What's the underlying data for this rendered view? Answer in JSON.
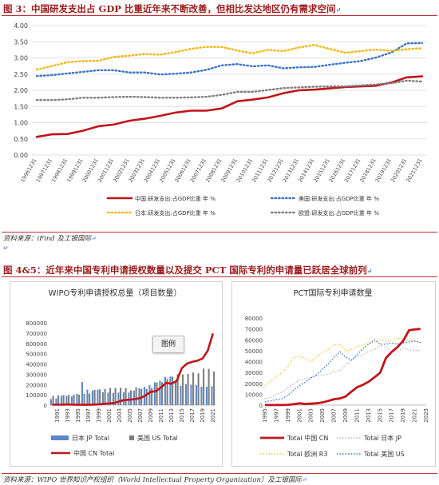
{
  "header1": {
    "title": "图 3：中国研发支出占 GDP 比重近年来不断改善，但相比发达地区仍有需求空间",
    "return_mark": "↵"
  },
  "source1": {
    "text": "资料来源：iFind 及工银国际",
    "return_mark": "↵"
  },
  "blank_mark": "↵",
  "header2": {
    "title": "图 4&5：近年来中国专利申请授权数量以及提交 PCT 国际专利的申请量已跃居全球前列",
    "return_mark": "↵"
  },
  "source2": {
    "text": "资料来源：WIPO 世界知识产权组织（World Intellectual Property Organization）及工银国际",
    "return_mark": "↵"
  },
  "tooltip_label": "图例",
  "colors": {
    "china": "#c0151a",
    "us": "#3a73c6",
    "japan": "#f2b81a",
    "eu": "#7f7f7f",
    "jp_bar": "#5b88c8",
    "us_bar": "#7d7d7d",
    "r3": "#f2c844",
    "pct_jp": "#b8b8b8"
  },
  "chart_data": [
    {
      "type": "line",
      "y_ticks": [
        "0.00",
        "0.50",
        "1.00",
        "1.50",
        "2.00",
        "2.50",
        "3.00",
        "3.50",
        "4.00"
      ],
      "ylim": [
        0,
        4.0
      ],
      "x": [
        "19961231",
        "19971231",
        "19981231",
        "19991231",
        "20001231",
        "20011231",
        "20021231",
        "20031231",
        "20041231",
        "20051231",
        "20061231",
        "20071231",
        "20081231",
        "20091231",
        "20101231",
        "20111231",
        "20121231",
        "20131231",
        "20141231",
        "20151231",
        "20161231",
        "20171231",
        "20181231",
        "20191231",
        "20201231",
        "20211231"
      ],
      "x_tick_labels": [
        "19961231",
        "19971231",
        "19981231",
        "19991231",
        "20001231",
        "20011231",
        "20021231",
        "20031231",
        "20041231",
        "20051231",
        "20061231",
        "20071231",
        "20081231",
        "20091231",
        "20101231",
        "20111231",
        "20121231",
        "20131231",
        "20141231",
        "20151231",
        "20161231",
        "20171231",
        "20181231",
        "20191231",
        "20201231",
        "20211231"
      ],
      "series": [
        {
          "name": "中国:研发支出:占GDP比重 年 %",
          "style": "solid",
          "values": [
            0.56,
            0.64,
            0.65,
            0.75,
            0.89,
            0.94,
            1.06,
            1.12,
            1.21,
            1.31,
            1.37,
            1.37,
            1.44,
            1.66,
            1.71,
            1.78,
            1.91,
            2.0,
            2.02,
            2.06,
            2.1,
            2.12,
            2.14,
            2.24,
            2.4,
            2.43
          ]
        },
        {
          "name": "美国:研发支出:占GDP比重 年 %",
          "style": "dotted",
          "values": [
            2.44,
            2.47,
            2.52,
            2.57,
            2.62,
            2.62,
            2.55,
            2.55,
            2.49,
            2.51,
            2.55,
            2.63,
            2.77,
            2.81,
            2.74,
            2.77,
            2.68,
            2.71,
            2.72,
            2.79,
            2.85,
            2.9,
            3.01,
            3.17,
            3.45,
            3.46
          ]
        },
        {
          "name": "日本:研发支出:占GDP比重 年 %",
          "style": "dotted",
          "values": [
            2.64,
            2.75,
            2.87,
            2.9,
            2.91,
            3.03,
            3.07,
            3.12,
            3.1,
            3.18,
            3.28,
            3.34,
            3.34,
            3.23,
            3.14,
            3.25,
            3.21,
            3.32,
            3.4,
            3.28,
            3.16,
            3.21,
            3.26,
            3.22,
            3.27,
            3.3
          ]
        },
        {
          "name": "欧盟:研发支出:占GDP比重 年 %",
          "style": "dotted",
          "values": [
            1.7,
            1.7,
            1.72,
            1.77,
            1.77,
            1.79,
            1.8,
            1.79,
            1.77,
            1.77,
            1.78,
            1.8,
            1.86,
            1.95,
            1.95,
            2.01,
            2.07,
            2.09,
            2.11,
            2.12,
            2.12,
            2.15,
            2.18,
            2.22,
            2.3,
            2.27
          ]
        }
      ]
    },
    {
      "type": "bar",
      "title": "WIPO专利申请授权总量（项目数量）",
      "y_ticks": [
        "0",
        "100000",
        "200000",
        "300000",
        "400000",
        "500000",
        "600000",
        "700000",
        "800000"
      ],
      "ylim": [
        0,
        800000
      ],
      "x_tick_labels": [
        "1991",
        "1993",
        "1995",
        "1997",
        "1999",
        "2001",
        "2003",
        "2005",
        "2007",
        "2009",
        "2011",
        "2013",
        "2015",
        "2017",
        "2019",
        "2021"
      ],
      "categories": [
        1990,
        1991,
        1992,
        1993,
        1994,
        1995,
        1996,
        1997,
        1998,
        1999,
        2000,
        2001,
        2002,
        2003,
        2004,
        2005,
        2006,
        2007,
        2008,
        2009,
        2010,
        2011,
        2012,
        2013,
        2014,
        2015,
        2016,
        2017,
        2018,
        2019,
        2020,
        2021
      ],
      "series": [
        {
          "name": "日本 JP Total",
          "type": "bar",
          "values": [
            60000,
            65000,
            90000,
            90000,
            85000,
            110000,
            225000,
            150000,
            142000,
            150000,
            125000,
            121000,
            120000,
            122000,
            124000,
            122000,
            141000,
            164000,
            177000,
            193000,
            222000,
            238000,
            274000,
            277000,
            227000,
            189000,
            204000,
            199000,
            194000,
            180000,
            179000,
            184000
          ]
        },
        {
          "name": "美国 US Total",
          "type": "bar",
          "values": [
            91000,
            96000,
            97000,
            99000,
            102000,
            102000,
            110000,
            112000,
            148000,
            153000,
            157000,
            166000,
            167000,
            169000,
            165000,
            144000,
            174000,
            158000,
            158000,
            167000,
            220000,
            224000,
            253000,
            278000,
            300000,
            298000,
            303000,
            318000,
            308000,
            355000,
            352000,
            327000
          ]
        },
        {
          "name": "中国 CN Total",
          "type": "line",
          "values": [
            4000,
            4000,
            4000,
            6000,
            4000,
            3000,
            3000,
            3000,
            5000,
            7000,
            13000,
            16000,
            21000,
            37000,
            49000,
            53000,
            58000,
            68000,
            94000,
            129000,
            135000,
            172000,
            217000,
            208000,
            234000,
            359000,
            404000,
            420000,
            432000,
            453000,
            530000,
            696000
          ]
        }
      ]
    },
    {
      "type": "line",
      "title": "PCT国际专利申请数量",
      "y_ticks": [
        "0",
        "10000",
        "20000",
        "30000",
        "40000",
        "50000",
        "60000",
        "70000",
        "80000"
      ],
      "ylim": [
        0,
        80000
      ],
      "x_tick_labels": [
        "1995",
        "1997",
        "1999",
        "2001",
        "2003",
        "2005",
        "2007",
        "2009",
        "2011",
        "2013",
        "2015",
        "2017",
        "2019",
        "2021",
        "2023"
      ],
      "x": [
        1995,
        1996,
        1997,
        1998,
        1999,
        2000,
        2001,
        2002,
        2003,
        2004,
        2005,
        2006,
        2007,
        2008,
        2009,
        2010,
        2011,
        2012,
        2013,
        2014,
        2015,
        2016,
        2017,
        2018,
        2019,
        2020,
        2021,
        2022
      ],
      "series": [
        {
          "name": "Total 中国 CN",
          "values": [
            100,
            100,
            100,
            100,
            300,
            800,
            1700,
            1000,
            1300,
            1700,
            2500,
            3900,
            5400,
            6100,
            7900,
            12300,
            16400,
            18600,
            21500,
            25500,
            29800,
            43200,
            48900,
            53300,
            58900,
            68700,
            69500,
            70000
          ]
        },
        {
          "name": "Total 日本 JP",
          "values": [
            6000,
            7000,
            10000,
            12000,
            16000,
            20000,
            23000,
            24000,
            25500,
            27000,
            27500,
            28500,
            31000,
            32000,
            37000,
            41000,
            45000,
            46000,
            49500,
            51000,
            55000,
            53000,
            50000,
            49500,
            52500,
            50500,
            50500,
            50000
          ]
        },
        {
          "name": "Total 欧洲 R3",
          "values": [
            17500,
            22000,
            26000,
            30000,
            36000,
            44000,
            45000,
            43000,
            40000,
            44000,
            48500,
            51000,
            55500,
            56000,
            49500,
            51000,
            54000,
            55000,
            57500,
            58000,
            60000,
            58000,
            60000,
            61000,
            61000,
            60000,
            58500,
            58000
          ]
        },
        {
          "name": "Total 美国 US",
          "values": [
            3000,
            4000,
            5000,
            6000,
            9000,
            14000,
            18000,
            21000,
            25000,
            28000,
            33000,
            38000,
            44000,
            49000,
            44000,
            41500,
            46000,
            52000,
            56000,
            60000,
            56000,
            56000,
            57000,
            56000,
            57000,
            58000,
            59000,
            57500
          ]
        }
      ]
    }
  ]
}
